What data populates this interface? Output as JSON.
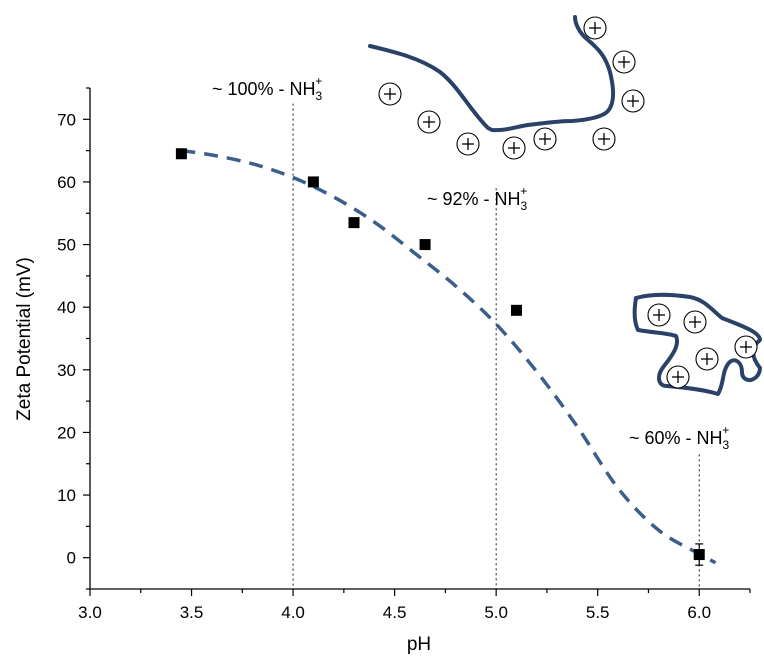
{
  "chart_data": {
    "type": "scatter",
    "title": "",
    "xlabel": "pH",
    "ylabel": "Zeta Potential (mV)",
    "xlim": [
      3.0,
      6.25
    ],
    "ylim": [
      -5,
      75
    ],
    "xticks": [
      "3.0",
      "3.5",
      "4.0",
      "4.5",
      "5.0",
      "5.5",
      "6.0"
    ],
    "yticks": [
      "0",
      "10",
      "20",
      "30",
      "40",
      "50",
      "60",
      "70"
    ],
    "grid": false,
    "series": [
      {
        "marker": "square",
        "color": "#000000",
        "x": [
          3.45,
          4.1,
          4.3,
          4.65,
          5.1,
          6.0
        ],
        "y": [
          64.5,
          60.0,
          53.5,
          50.0,
          39.5,
          0.5
        ],
        "error_y": [
          0,
          0,
          0,
          0,
          0,
          1.7
        ]
      }
    ],
    "fit_curve": {
      "style": "dashed",
      "color": "#3a5f8a",
      "x": [
        3.45,
        3.6,
        3.8,
        4.0,
        4.2,
        4.4,
        4.6,
        4.8,
        5.0,
        5.2,
        5.4,
        5.6,
        5.8,
        6.0,
        6.08
      ],
      "y": [
        65.0,
        64.3,
        62.9,
        60.7,
        57.6,
        53.6,
        48.6,
        43.4,
        37.3,
        29.7,
        20.9,
        11.1,
        4.4,
        0.6,
        -0.8
      ]
    },
    "reference_lines": [
      {
        "x": 4.0,
        "y_top": 72.5
      },
      {
        "x": 5.0,
        "y_top": 59.0
      },
      {
        "x": 6.0,
        "y_top": 16.5
      }
    ],
    "annotations": [
      {
        "prefix": "~ 100%  - NH",
        "sub": "3",
        "sup": "+"
      },
      {
        "prefix": "~ 92% - NH",
        "sub": "3",
        "sup": "+"
      },
      {
        "prefix": "~ 60% - NH",
        "sub": "3",
        "sup": "+"
      }
    ],
    "charge_symbol": "+",
    "chain_color": "#2a4268"
  }
}
